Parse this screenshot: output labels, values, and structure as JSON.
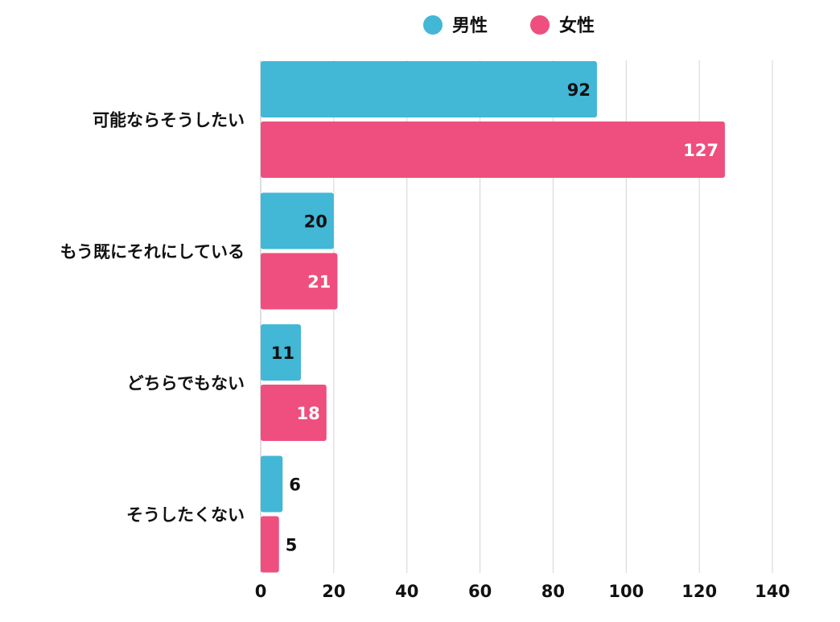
{
  "chart_data": {
    "type": "bar",
    "orientation": "horizontal",
    "categories": [
      "可能ならそうしたい",
      "もう既にそれにしている",
      "どちらでもない",
      "そうしたくない"
    ],
    "series": [
      {
        "name": "男性",
        "color": "#42b7d6",
        "values": [
          92,
          20,
          11,
          6
        ]
      },
      {
        "name": "女性",
        "color": "#ee4f7e",
        "values": [
          127,
          21,
          18,
          5
        ]
      }
    ],
    "xlim": [
      0,
      140
    ],
    "x_ticks": [
      "0",
      "20",
      "40",
      "60",
      "80",
      "100",
      "120",
      "140"
    ],
    "grid": true,
    "legend_position": "top-center"
  }
}
